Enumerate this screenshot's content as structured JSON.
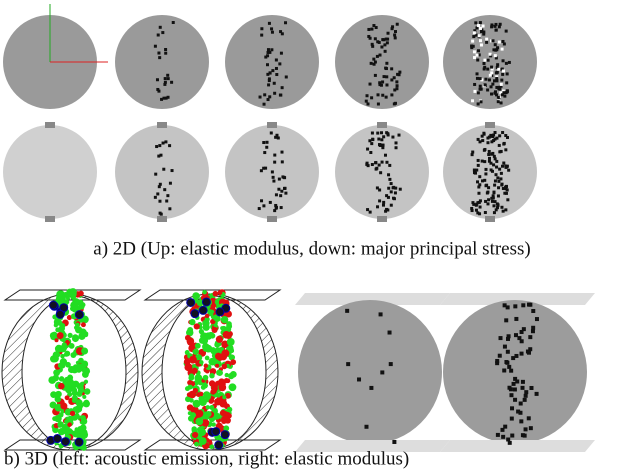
{
  "captions": {
    "a": "a) 2D (Up: elastic modulus, down: major principal stress)",
    "b": "b) 3D (left: acoustic emission, right: elastic modulus)"
  }
}
